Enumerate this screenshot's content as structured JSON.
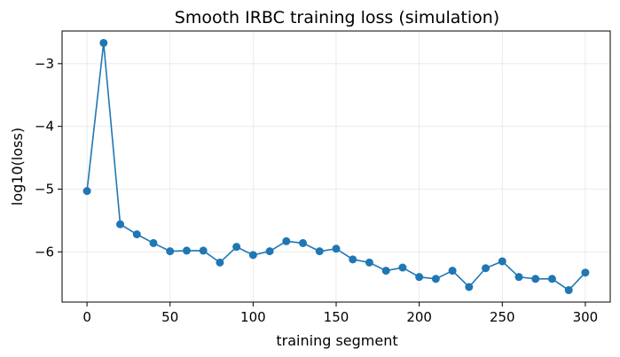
{
  "chart_data": {
    "type": "line",
    "title": "Smooth IRBC training loss (simulation)",
    "xlabel": "training segment",
    "ylabel": "log10(loss)",
    "xlim": [
      -15,
      315
    ],
    "ylim": [
      -6.8,
      -2.48
    ],
    "xticks": [
      0,
      50,
      100,
      150,
      200,
      250,
      300
    ],
    "xtick_labels": [
      "0",
      "50",
      "100",
      "150",
      "200",
      "250",
      "300"
    ],
    "yticks": [
      -6,
      -5,
      -4,
      -3
    ],
    "ytick_labels": [
      "−6",
      "−5",
      "−4",
      "−3"
    ],
    "grid": true,
    "series": [
      {
        "color": "#1f77b4",
        "marker": "circle",
        "x": [
          0,
          10,
          20,
          30,
          40,
          50,
          60,
          70,
          80,
          90,
          100,
          110,
          120,
          130,
          140,
          150,
          160,
          170,
          180,
          190,
          200,
          210,
          220,
          230,
          240,
          250,
          260,
          270,
          280,
          290,
          300
        ],
        "y": [
          -5.03,
          -2.67,
          -5.56,
          -5.72,
          -5.86,
          -5.99,
          -5.98,
          -5.98,
          -6.17,
          -5.92,
          -6.05,
          -5.99,
          -5.83,
          -5.86,
          -5.99,
          -5.95,
          -6.12,
          -6.17,
          -6.3,
          -6.25,
          -6.4,
          -6.43,
          -6.3,
          -6.56,
          -6.26,
          -6.15,
          -6.4,
          -6.43,
          -6.43,
          -6.61,
          -6.33
        ]
      }
    ]
  }
}
